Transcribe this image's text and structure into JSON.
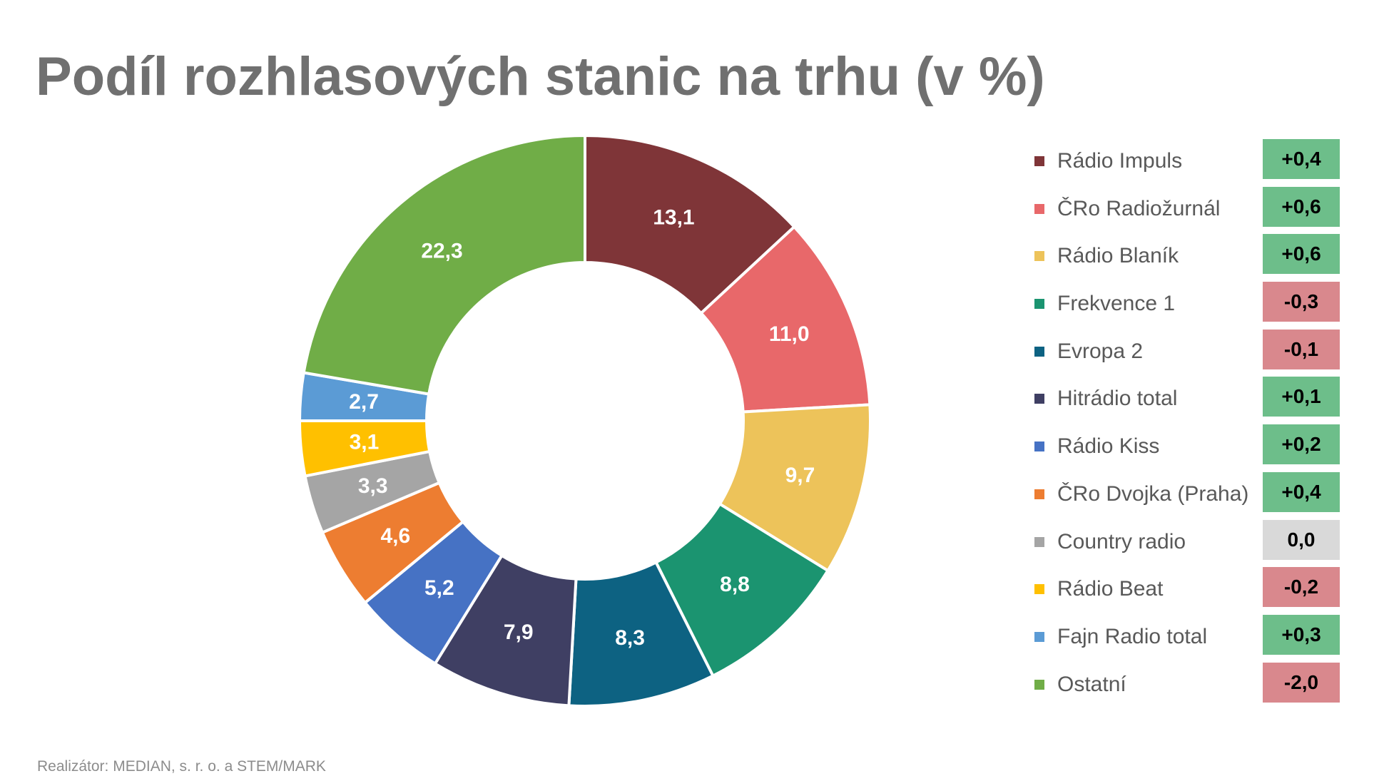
{
  "title": "Podíl rozhlasových stanic na trhu (v %)",
  "footer": "Realizátor: MEDIAN, s. r. o. a STEM/MARK",
  "colors": {
    "positive_change": "#6dbe8a",
    "negative_change": "#d9888d",
    "zero_change": "#d9d9d9",
    "label_text": "#ffffff"
  },
  "chart_data": {
    "type": "pie",
    "variant": "donut",
    "title": "Podíl rozhlasových stanic na trhu (v %)",
    "legend_position": "right",
    "categories": [
      "Rádio Impuls",
      "ČRo Radiožurnál",
      "Rádio Blaník",
      "Frekvence 1",
      "Evropa 2",
      "Hitrádio total",
      "Rádio Kiss",
      "ČRo Dvojka (Praha)",
      "Country radio",
      "Rádio Beat",
      "Fajn Radio total",
      "Ostatní"
    ],
    "values": [
      13.1,
      11.0,
      9.7,
      8.8,
      8.3,
      7.9,
      5.2,
      4.6,
      3.3,
      3.1,
      2.7,
      22.3
    ],
    "value_labels": [
      "13,1",
      "11,0",
      "9,7",
      "8,8",
      "8,3",
      "7,9",
      "5,2",
      "4,6",
      "3,3",
      "3,1",
      "2,7",
      "22,3"
    ],
    "colors": [
      "#7f3538",
      "#e8686a",
      "#edc35a",
      "#1b9470",
      "#0d6282",
      "#3f3f63",
      "#4672c4",
      "#ed7d31",
      "#a5a5a5",
      "#ffc000",
      "#5b9bd5",
      "#70ad47"
    ],
    "changes": [
      "+0,4",
      "+0,6",
      "+0,6",
      "-0,3",
      "-0,1",
      "+0,1",
      "+0,2",
      "+0,4",
      "0,0",
      "-0,2",
      "+0,3",
      "-2,0"
    ],
    "change_values": [
      0.4,
      0.6,
      0.6,
      -0.3,
      -0.1,
      0.1,
      0.2,
      0.4,
      0.0,
      -0.2,
      0.3,
      -2.0
    ]
  }
}
